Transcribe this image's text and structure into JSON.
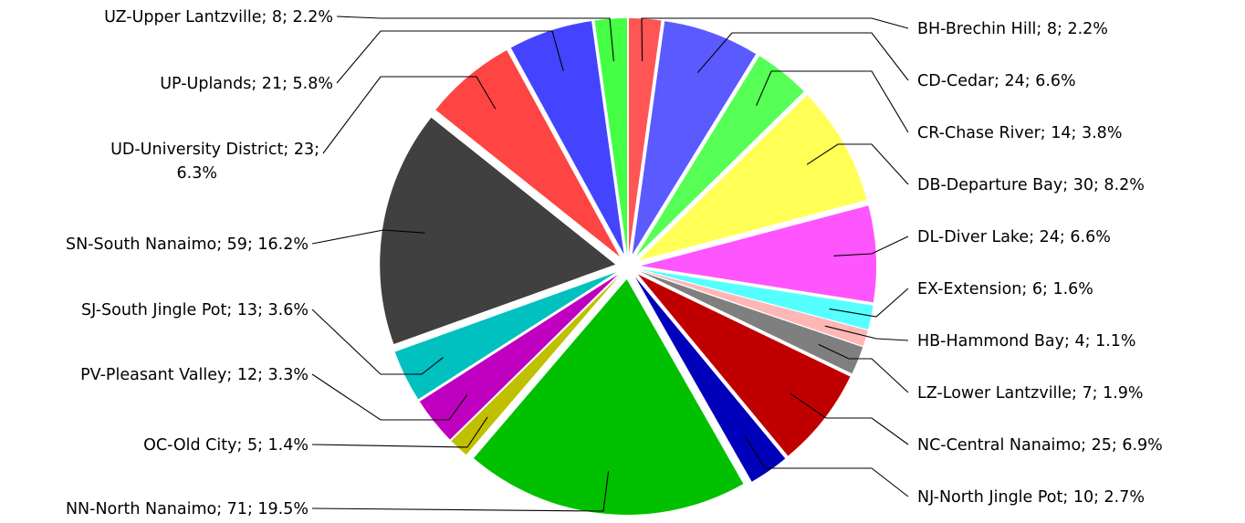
{
  "chart_data": {
    "type": "pie",
    "title": "",
    "slices": [
      {
        "label": "BH-Brechin Hill; 8; 2.2%",
        "value": 8,
        "color": "#ff5555"
      },
      {
        "label": "CD-Cedar; 24; 6.6%",
        "value": 24,
        "color": "#5a5aff"
      },
      {
        "label": "CR-Chase River; 14; 3.8%",
        "value": 14,
        "color": "#55ff55"
      },
      {
        "label": "DB-Departure Bay; 30; 8.2%",
        "value": 30,
        "color": "#ffff55"
      },
      {
        "label": "DL-Diver Lake; 24; 6.6%",
        "value": 24,
        "color": "#ff55ff"
      },
      {
        "label": "EX-Extension; 6; 1.6%",
        "value": 6,
        "color": "#55ffff"
      },
      {
        "label": "HB-Hammond Bay; 4; 1.1%",
        "value": 4,
        "color": "#ffb6b6"
      },
      {
        "label": "LZ-Lower Lantzville; 7; 1.9%",
        "value": 7,
        "color": "#7f7f7f"
      },
      {
        "label": "NC-Central Nanaimo; 25; 6.9%",
        "value": 25,
        "color": "#c00000"
      },
      {
        "label": "NJ-North Jingle Pot; 10; 2.7%",
        "value": 10,
        "color": "#0000bb"
      },
      {
        "label": "NN-North Nanaimo; 71; 19.5%",
        "value": 71,
        "color": "#00c000"
      },
      {
        "label": "OC-Old City; 5; 1.4%",
        "value": 5,
        "color": "#c0c000"
      },
      {
        "label": "PV-Pleasant Valley; 12; 3.3%",
        "value": 12,
        "color": "#c000c0"
      },
      {
        "label": "SJ-South Jingle Pot; 13; 3.6%",
        "value": 13,
        "color": "#00c0c0"
      },
      {
        "label": "SN-South Nanaimo; 59; 16.2%",
        "value": 59,
        "color": "#404040"
      },
      {
        "label": "UD-University District; 23;\n6.3%",
        "value": 23,
        "color": "#ff4444"
      },
      {
        "label": "UP-Uplands; 21; 5.8%",
        "value": 21,
        "color": "#4444ff"
      },
      {
        "label": "UZ-Upper Lantzville; 8; 2.2%",
        "value": 8,
        "color": "#44ff44"
      }
    ]
  }
}
